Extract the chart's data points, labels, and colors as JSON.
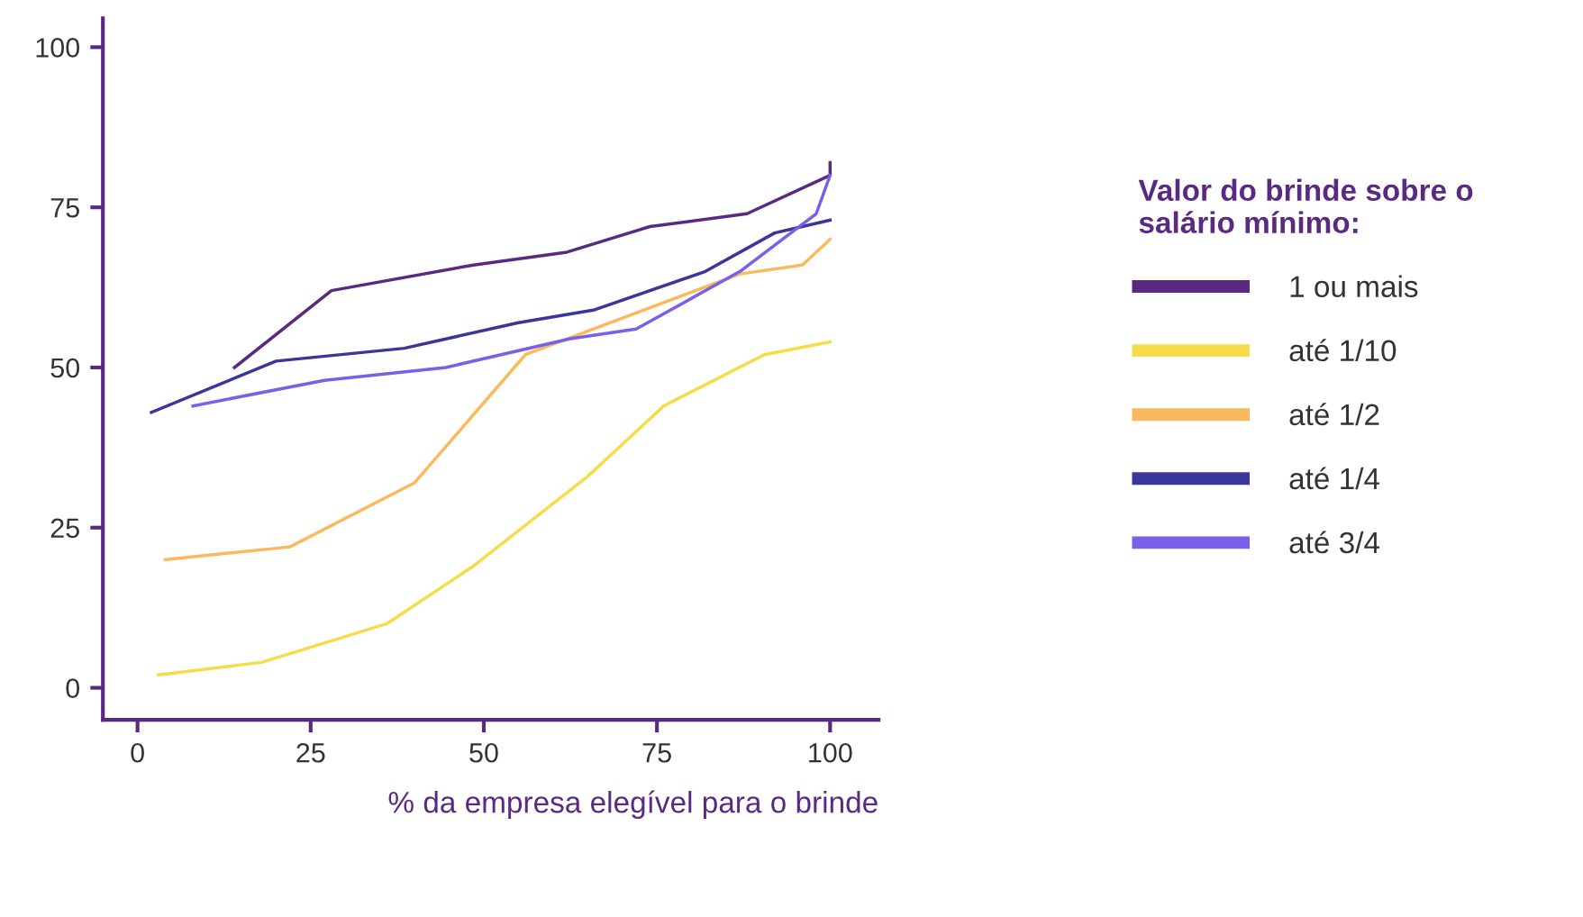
{
  "chart_data": {
    "type": "line",
    "xlabel": "% da empresa elegível para o brinde",
    "legend_title": "Valor do brinde sobre o\nsalário mínimo:",
    "legend": "right",
    "grid": false,
    "marker": "none",
    "line_style": "solid",
    "xlim": [
      -5,
      107
    ],
    "ylim": [
      -5,
      104.5
    ],
    "xticks": [
      0,
      25,
      50,
      75,
      100
    ],
    "yticks": [
      0,
      25,
      50,
      75,
      100
    ],
    "series": [
      {
        "name": "1 ou mais",
        "color": "#5a2a82",
        "x": [
          14,
          28,
          48.5,
          62,
          74,
          88,
          100,
          100
        ],
        "values": [
          50,
          62,
          66,
          68,
          72,
          74,
          80,
          82
        ]
      },
      {
        "name": "até 1/10",
        "color": "#f7dc4a",
        "x": [
          3,
          18,
          36,
          48.5,
          65,
          76,
          90.5,
          100
        ],
        "values": [
          2,
          4,
          10,
          19,
          33,
          44,
          52,
          54
        ]
      },
      {
        "name": "até 1/2",
        "color": "#fbb95e",
        "x": [
          4,
          22,
          40,
          56,
          87,
          96,
          100
        ],
        "values": [
          20,
          22,
          32,
          52,
          64.6,
          66,
          70
        ]
      },
      {
        "name": "até 1/4",
        "color": "#3b3699",
        "x": [
          2,
          20,
          38.5,
          55,
          66,
          82,
          92,
          100
        ],
        "values": [
          43,
          51,
          53,
          57,
          59,
          65,
          71,
          73
        ]
      },
      {
        "name": "até 3/4",
        "color": "#7b5fe8",
        "x": [
          8,
          27,
          44.5,
          62.5,
          72,
          87,
          98,
          100
        ],
        "values": [
          44,
          48,
          50,
          54.5,
          56,
          65,
          74,
          80
        ]
      }
    ]
  }
}
